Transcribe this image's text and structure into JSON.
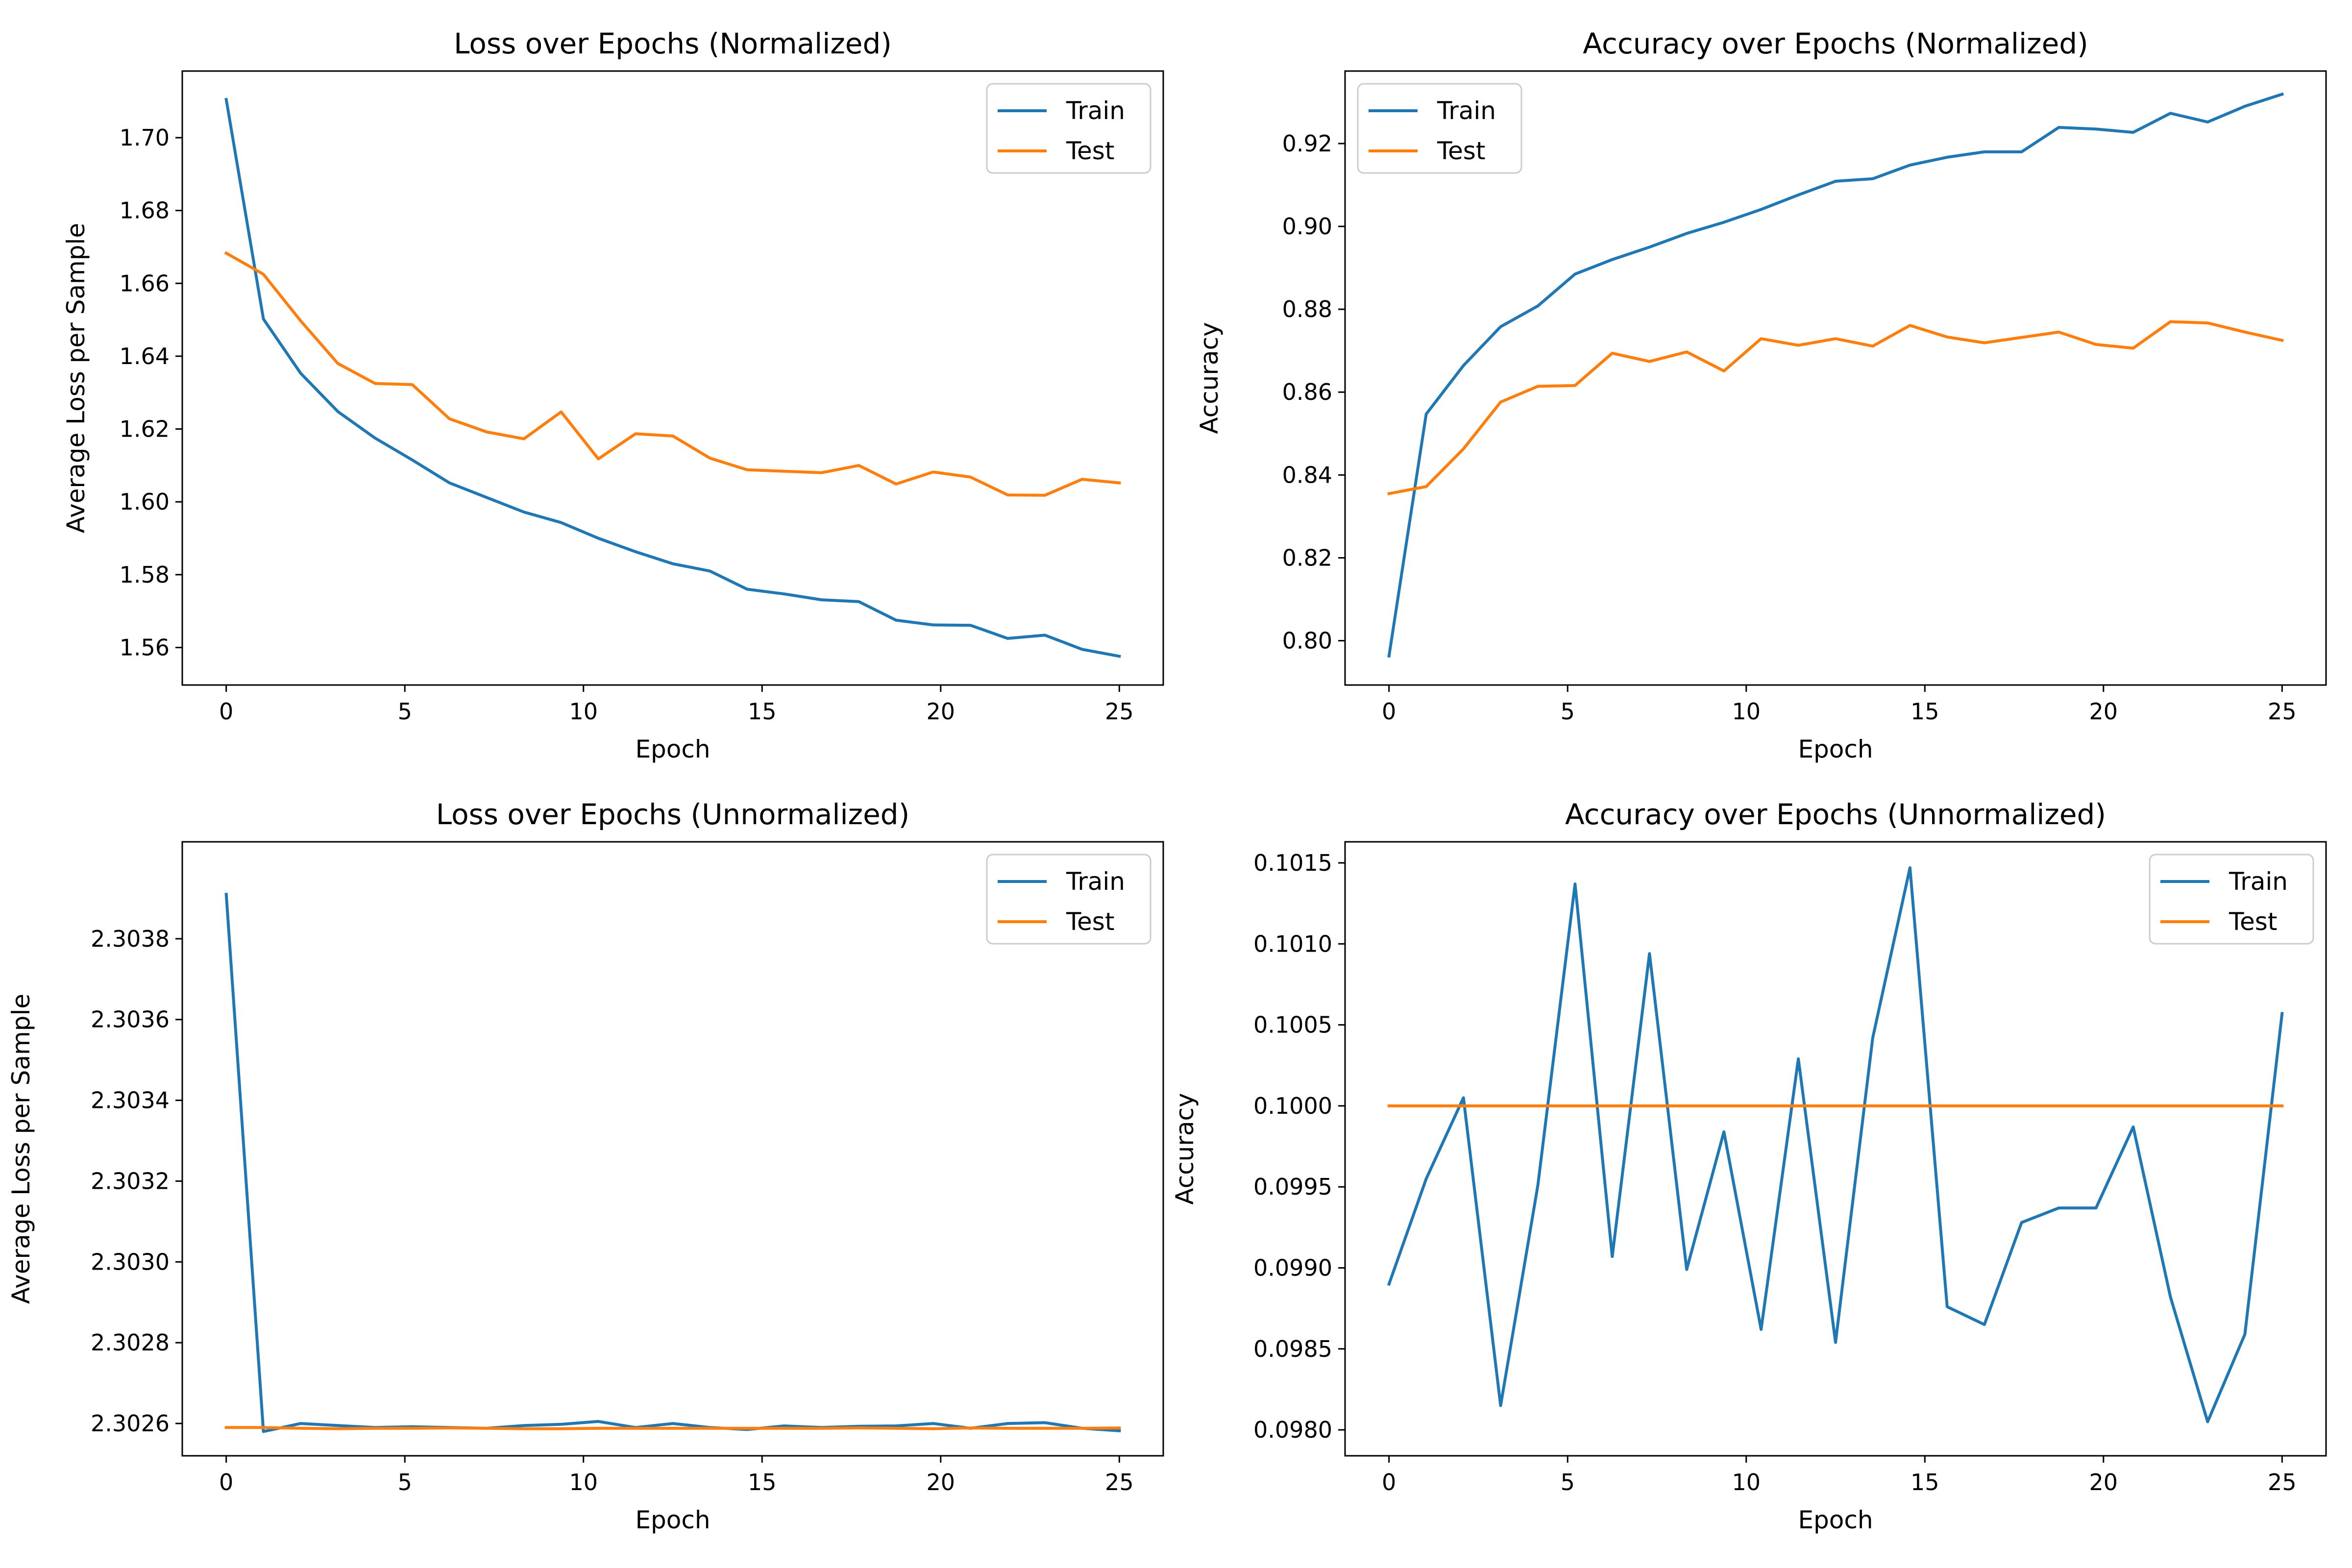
{
  "chart_data": [
    {
      "type": "line",
      "title": "Loss over Epochs (Normalized)",
      "xlabel": "Epoch",
      "ylabel": "Average Loss per Sample",
      "xlim": [
        -1.23,
        26.23
      ],
      "ylim": [
        1.5497,
        1.7183
      ],
      "xticks": [
        0,
        5,
        10,
        15,
        20,
        25
      ],
      "yticks": [
        1.56,
        1.58,
        1.6,
        1.62,
        1.64,
        1.66,
        1.68,
        1.7
      ],
      "ytick_labels": [
        "1.56",
        "1.58",
        "1.60",
        "1.62",
        "1.64",
        "1.66",
        "1.68",
        "1.70"
      ],
      "legend_position": "top-right",
      "x": [
        0,
        1.0417,
        2.0833,
        3.125,
        4.1667,
        5.2083,
        6.25,
        7.2917,
        8.3333,
        9.375,
        10.4167,
        11.4583,
        12.5,
        13.5417,
        14.5833,
        15.625,
        16.6667,
        17.7083,
        18.75,
        19.7917,
        20.8333,
        21.875,
        22.9167,
        23.9583,
        25
      ],
      "series": [
        {
          "name": "Train",
          "color": "#1f77b4",
          "values": [
            1.7105,
            1.6502,
            1.6353,
            1.6248,
            1.6175,
            1.6115,
            1.6052,
            1.6012,
            1.5972,
            1.5943,
            1.59,
            1.5863,
            1.583,
            1.581,
            1.576,
            1.5747,
            1.5731,
            1.5726,
            1.5675,
            1.5662,
            1.5661,
            1.5625,
            1.5634,
            1.5595,
            1.5576
          ]
        },
        {
          "name": "Test",
          "color": "#ff7f0e",
          "values": [
            1.6683,
            1.6625,
            1.6497,
            1.638,
            1.6325,
            1.6322,
            1.6228,
            1.6192,
            1.6173,
            1.6247,
            1.6118,
            1.6187,
            1.6181,
            1.612,
            1.6088,
            1.6084,
            1.608,
            1.61,
            1.6049,
            1.6082,
            1.6068,
            1.6019,
            1.6018,
            1.6062,
            1.6052
          ]
        }
      ]
    },
    {
      "type": "line",
      "title": "Accuracy over Epochs (Normalized)",
      "xlabel": "Epoch",
      "ylabel": "Accuracy",
      "xlim": [
        -1.23,
        26.23
      ],
      "ylim": [
        0.7893,
        0.9375
      ],
      "xticks": [
        0,
        5,
        10,
        15,
        20,
        25
      ],
      "yticks": [
        0.8,
        0.82,
        0.84,
        0.86,
        0.88,
        0.9,
        0.92
      ],
      "ytick_labels": [
        "0.80",
        "0.82",
        "0.84",
        "0.86",
        "0.88",
        "0.90",
        "0.92"
      ],
      "legend_position": "top-left",
      "x": [
        0,
        1.0417,
        2.0833,
        3.125,
        4.1667,
        5.2083,
        6.25,
        7.2917,
        8.3333,
        9.375,
        10.4167,
        11.4583,
        12.5,
        13.5417,
        14.5833,
        15.625,
        16.6667,
        17.7083,
        18.75,
        19.7917,
        20.8333,
        21.875,
        22.9167,
        23.9583,
        25
      ],
      "series": [
        {
          "name": "Train",
          "color": "#1f77b4",
          "values": [
            0.7963,
            0.8547,
            0.8664,
            0.8758,
            0.8808,
            0.8885,
            0.892,
            0.895,
            0.8983,
            0.901,
            0.9041,
            0.9076,
            0.9109,
            0.9115,
            0.9148,
            0.9167,
            0.918,
            0.918,
            0.9239,
            0.9235,
            0.9227,
            0.9273,
            0.9252,
            0.929,
            0.9319
          ]
        },
        {
          "name": "Test",
          "color": "#ff7f0e",
          "values": [
            0.8355,
            0.8372,
            0.8463,
            0.8576,
            0.8614,
            0.8616,
            0.8694,
            0.8674,
            0.8697,
            0.8651,
            0.8729,
            0.8713,
            0.8729,
            0.8711,
            0.8761,
            0.8733,
            0.8719,
            0.8732,
            0.8745,
            0.8715,
            0.8706,
            0.877,
            0.8767,
            0.8745,
            0.8725
          ]
        }
      ]
    },
    {
      "type": "line",
      "title": "Loss over Epochs (Unnormalized)",
      "xlabel": "Epoch",
      "ylabel": "Average Loss per Sample",
      "xlim": [
        -1.23,
        26.23
      ],
      "ylim": [
        2.30252,
        2.30404
      ],
      "xticks": [
        0,
        5,
        10,
        15,
        20,
        25
      ],
      "yticks": [
        2.3026,
        2.3028,
        2.303,
        2.3032,
        2.3034,
        2.3036,
        2.3038
      ],
      "ytick_labels": [
        "2.3026",
        "2.3028",
        "2.3030",
        "2.3032",
        "2.3034",
        "2.3036",
        "2.3038"
      ],
      "legend_position": "top-right",
      "x": [
        0,
        1.0417,
        2.0833,
        3.125,
        4.1667,
        5.2083,
        6.25,
        7.2917,
        8.3333,
        9.375,
        10.4167,
        11.4583,
        12.5,
        13.5417,
        14.5833,
        15.625,
        16.6667,
        17.7083,
        18.75,
        19.7917,
        20.8333,
        21.875,
        22.9167,
        23.9583,
        25
      ],
      "series": [
        {
          "name": "Train",
          "color": "#1f77b4",
          "values": [
            2.30391,
            2.30258,
            2.3026,
            2.302595,
            2.30259,
            2.302592,
            2.30259,
            2.302588,
            2.302595,
            2.302598,
            2.302605,
            2.30259,
            2.3026,
            2.30259,
            2.302585,
            2.302594,
            2.30259,
            2.302593,
            2.302594,
            2.3026,
            2.302588,
            2.3026,
            2.302602,
            2.302588,
            2.302582
          ]
        },
        {
          "name": "Test",
          "color": "#ff7f0e",
          "values": [
            2.30259,
            2.30259,
            2.302588,
            2.302587,
            2.302588,
            2.302588,
            2.302589,
            2.302588,
            2.302587,
            2.302587,
            2.302588,
            2.302588,
            2.302588,
            2.302588,
            2.302588,
            2.302588,
            2.302588,
            2.302589,
            2.302588,
            2.302587,
            2.302589,
            2.302588,
            2.302588,
            2.302588,
            2.302589
          ]
        }
      ]
    },
    {
      "type": "line",
      "title": "Accuracy over Epochs (Unnormalized)",
      "xlabel": "Epoch",
      "ylabel": "Accuracy",
      "xlim": [
        -1.23,
        26.23
      ],
      "ylim": [
        0.09784,
        0.10163
      ],
      "xticks": [
        0,
        5,
        10,
        15,
        20,
        25
      ],
      "yticks": [
        0.098,
        0.0985,
        0.099,
        0.0995,
        0.1,
        0.1005,
        0.101,
        0.1015
      ],
      "ytick_labels": [
        "0.0980",
        "0.0985",
        "0.0990",
        "0.0995",
        "0.1000",
        "0.1005",
        "0.1010",
        "0.1015"
      ],
      "legend_position": "top-right",
      "x": [
        0,
        1.0417,
        2.0833,
        3.125,
        4.1667,
        5.2083,
        6.25,
        7.2917,
        8.3333,
        9.375,
        10.4167,
        11.4583,
        12.5,
        13.5417,
        14.5833,
        15.625,
        16.6667,
        17.7083,
        18.75,
        19.7917,
        20.8333,
        21.875,
        22.9167,
        23.9583,
        25
      ],
      "series": [
        {
          "name": "Train",
          "color": "#1f77b4",
          "values": [
            0.0989,
            0.09955,
            0.10005,
            0.09815,
            0.09951,
            0.10137,
            0.09907,
            0.10094,
            0.09899,
            0.09984,
            0.09862,
            0.10029,
            0.09854,
            0.10042,
            0.10147,
            0.09876,
            0.09865,
            0.09928,
            0.09937,
            0.09937,
            0.09987,
            0.09882,
            0.09805,
            0.09859,
            0.10057
          ]
        },
        {
          "name": "Test",
          "color": "#ff7f0e",
          "values": [
            0.1,
            0.1,
            0.1,
            0.1,
            0.1,
            0.1,
            0.1,
            0.1,
            0.1,
            0.1,
            0.1,
            0.1,
            0.1,
            0.1,
            0.1,
            0.1,
            0.1,
            0.1,
            0.1,
            0.1,
            0.1,
            0.1,
            0.1,
            0.1,
            0.1
          ]
        }
      ]
    }
  ]
}
